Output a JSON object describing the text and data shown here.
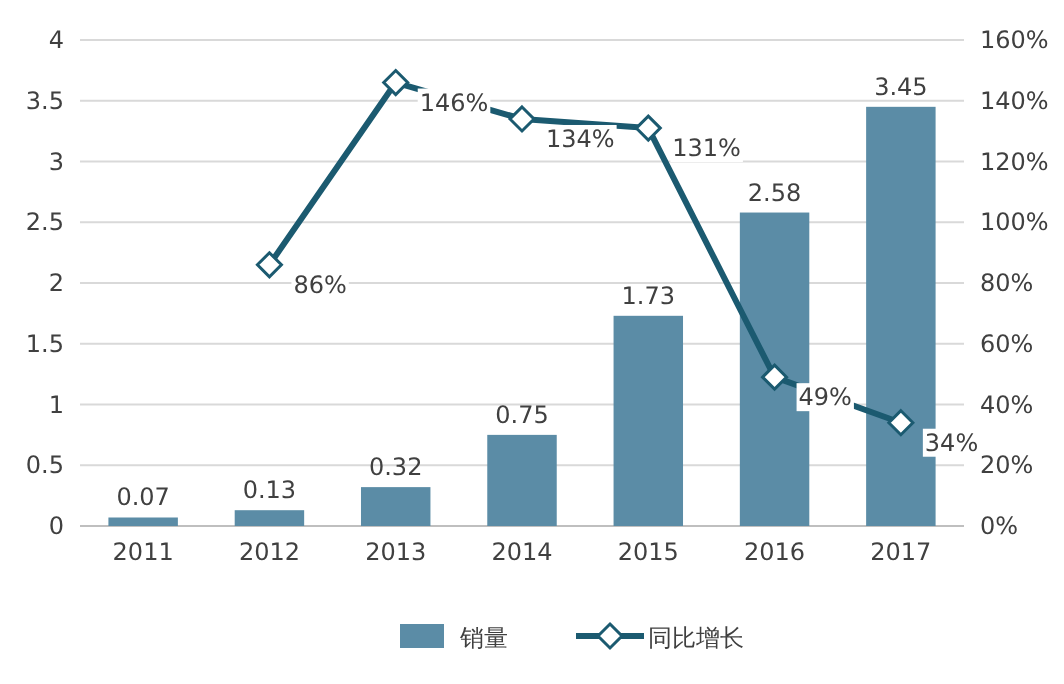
{
  "chart_data": {
    "type": "bar",
    "categories": [
      "2011",
      "2012",
      "2013",
      "2014",
      "2015",
      "2016",
      "2017"
    ],
    "series": [
      {
        "name": "销量",
        "color": "#5b8ca6",
        "values": [
          0.07,
          0.13,
          0.32,
          0.75,
          1.73,
          2.58,
          3.45
        ],
        "value_labels": [
          "0.07",
          "0.13",
          "0.32",
          "0.75",
          "1.73",
          "2.58",
          "3.45"
        ]
      },
      {
        "name": "同比增长",
        "type": "line",
        "axis": "y2",
        "color": "#1b5a70",
        "values": [
          null,
          86,
          146,
          134,
          131,
          49,
          34
        ],
        "value_labels": [
          null,
          "86%",
          "146%",
          "134%",
          "131%",
          "49%",
          "34%"
        ]
      }
    ],
    "ylim": [
      0,
      4
    ],
    "yticks": [
      0,
      0.5,
      1,
      1.5,
      2,
      2.5,
      3,
      3.5,
      4
    ],
    "y2lim": [
      0,
      160
    ],
    "y2ticks": [
      {
        "value": 0,
        "label": "0%"
      },
      {
        "value": 20,
        "label": "20%"
      },
      {
        "value": 40,
        "label": "40%"
      },
      {
        "value": 60,
        "label": "60%"
      },
      {
        "value": 80,
        "label": "80%"
      },
      {
        "value": 100,
        "label": "100%"
      },
      {
        "value": 120,
        "label": "120%"
      },
      {
        "value": 140,
        "label": "140%"
      },
      {
        "value": 160,
        "label": "160%"
      }
    ],
    "grid": "y",
    "legend": "bottom",
    "marker": "diamond"
  }
}
